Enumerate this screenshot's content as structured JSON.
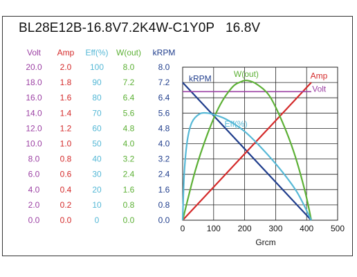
{
  "chart_data": {
    "type": "line",
    "title": "BL28E12B-16.8V7.2K4W-C1Y0P   16.8V",
    "xlabel": "Grcm",
    "xlim": [
      0,
      500
    ],
    "x_ticks": [
      "0",
      "100",
      "200",
      "300",
      "400",
      "500"
    ],
    "grid": true,
    "y_axes": [
      {
        "name": "Volt",
        "color": "#9b3fa3",
        "ticks": [
          "0.0",
          "2.0",
          "4.0",
          "6.0",
          "8.0",
          "10.0",
          "12.0",
          "14.0",
          "16.0",
          "18.0",
          "20.0"
        ],
        "range": [
          0,
          20
        ]
      },
      {
        "name": "Amp",
        "color": "#d42a2a",
        "ticks": [
          "0.0",
          "0.2",
          "0.4",
          "0.6",
          "0.8",
          "1.0",
          "1.2",
          "1.4",
          "1.6",
          "1.8",
          "2.0"
        ],
        "range": [
          0,
          2
        ]
      },
      {
        "name": "Eff(%)",
        "color": "#55b8d6",
        "ticks": [
          "0",
          "10",
          "20",
          "30",
          "40",
          "50",
          "60",
          "70",
          "80",
          "90",
          "100"
        ],
        "range": [
          0,
          100
        ]
      },
      {
        "name": "W(out)",
        "color": "#5cb035",
        "ticks": [
          "0.0",
          "0.8",
          "1.6",
          "2.4",
          "3.2",
          "4.0",
          "4.8",
          "5.6",
          "6.4",
          "7.2",
          "8.0"
        ],
        "range": [
          0,
          8
        ]
      },
      {
        "name": "kRPM",
        "color": "#1f3d8c",
        "ticks": [
          "0.0",
          "0.8",
          "1.6",
          "2.4",
          "3.2",
          "4.0",
          "4.8",
          "5.6",
          "6.4",
          "7.2",
          "8.0"
        ],
        "range": [
          0,
          8
        ]
      }
    ],
    "series": [
      {
        "name": "kRPM",
        "color": "#1f3d8c",
        "width": 2.2,
        "axis": 4,
        "x": [
          0,
          415
        ],
        "y": [
          7.2,
          0
        ],
        "label_at": [
          20,
          7.25
        ]
      },
      {
        "name": "Amp",
        "color": "#d42a2a",
        "width": 2.2,
        "axis": 1,
        "x": [
          0,
          415
        ],
        "y": [
          0,
          1.8
        ],
        "label_at": [
          412,
          1.85
        ]
      },
      {
        "name": "Volt",
        "color": "#9b3fa3",
        "width": 1.6,
        "axis": 0,
        "x": [
          0,
          415
        ],
        "y": [
          16.8,
          16.8
        ],
        "label_at": [
          418,
          16.8
        ]
      },
      {
        "name": "W(out)",
        "color": "#5cb035",
        "width": 2.2,
        "axis": 3,
        "x": [
          0,
          40,
          80,
          120,
          160,
          190,
          210,
          240,
          280,
          320,
          360,
          395,
          415
        ],
        "y": [
          0,
          2.55,
          4.5,
          6.0,
          6.95,
          7.25,
          7.3,
          7.1,
          6.5,
          5.2,
          3.5,
          1.5,
          0
        ],
        "label_at": [
          165,
          7.5
        ]
      },
      {
        "name": "Eff(%)",
        "color": "#55b8d6",
        "width": 2.2,
        "axis": 2,
        "x": [
          0,
          5,
          15,
          30,
          55,
          80,
          100,
          140,
          200,
          260,
          320,
          370,
          415
        ],
        "y": [
          0,
          30,
          52,
          64,
          69.5,
          70,
          69,
          66,
          58,
          46,
          32,
          18,
          0
        ],
        "label_at": [
          135,
          61
        ]
      }
    ]
  }
}
